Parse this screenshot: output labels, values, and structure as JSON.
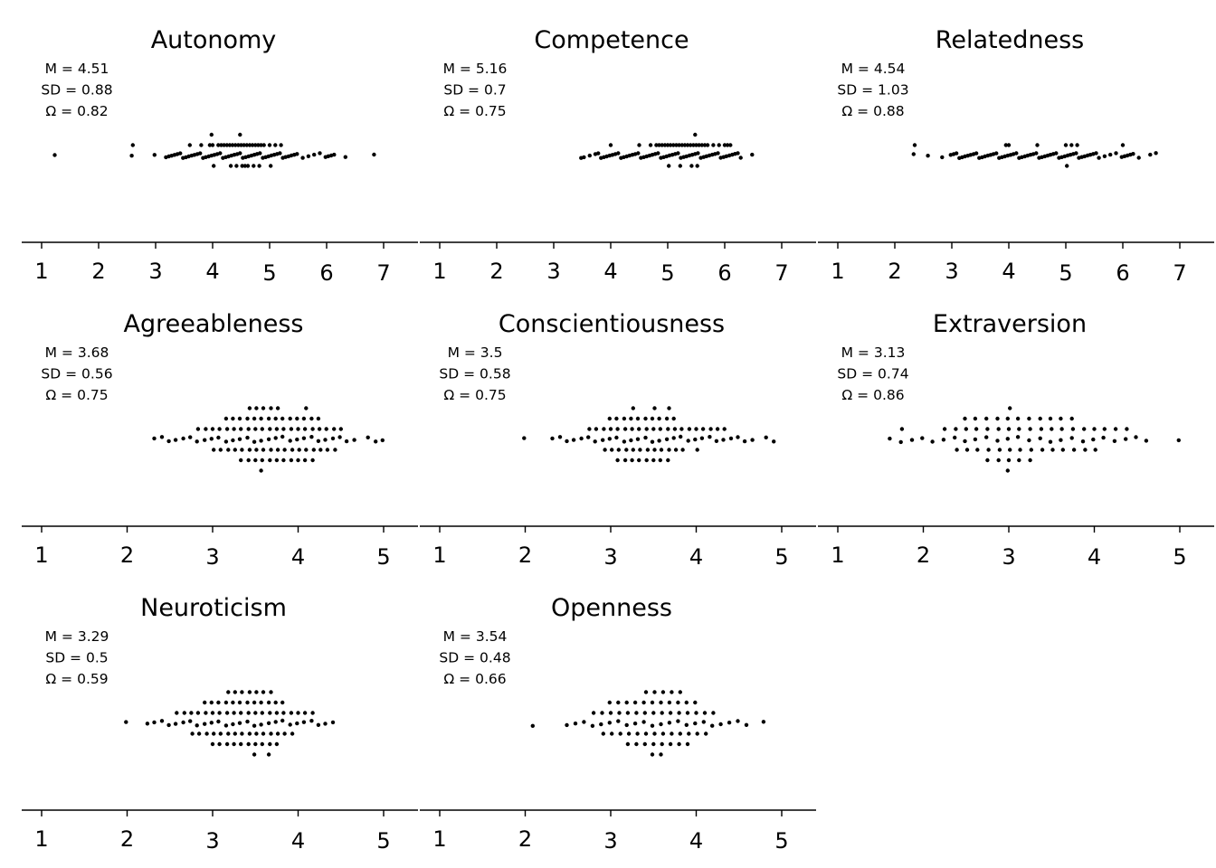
{
  "figure": {
    "background": "#ffffff",
    "dot_color": "#000000"
  },
  "chart_data": [
    {
      "type": "scatter",
      "subtype": "beeswarm",
      "title": "Autonomy",
      "stats": {
        "mean": "M = 4.51",
        "sd": "SD = 0.88",
        "omega": "Ω = 0.82"
      },
      "xlim": [
        1,
        7
      ],
      "ticks": [
        "1",
        "2",
        "3",
        "4",
        "5",
        "6",
        "7"
      ],
      "points": [
        1.25,
        2.6,
        2.6,
        3.0,
        3.2,
        3.25,
        3.3,
        3.35,
        3.4,
        3.45,
        3.5,
        3.55,
        3.6,
        3.6,
        3.65,
        3.7,
        3.75,
        3.8,
        3.8,
        3.85,
        3.9,
        3.95,
        3.95,
        4.0,
        4.0,
        4.0,
        4.0,
        4.05,
        4.1,
        4.1,
        4.15,
        4.15,
        4.2,
        4.2,
        4.25,
        4.25,
        4.3,
        4.3,
        4.3,
        4.35,
        4.35,
        4.4,
        4.4,
        4.4,
        4.45,
        4.45,
        4.5,
        4.5,
        4.5,
        4.5,
        4.55,
        4.55,
        4.55,
        4.6,
        4.6,
        4.6,
        4.65,
        4.65,
        4.7,
        4.7,
        4.7,
        4.75,
        4.75,
        4.8,
        4.8,
        4.8,
        4.85,
        4.85,
        4.9,
        4.9,
        4.95,
        5.0,
        5.0,
        5.0,
        5.05,
        5.1,
        5.1,
        5.15,
        5.2,
        5.2,
        5.25,
        5.3,
        5.35,
        5.4,
        5.45,
        5.5,
        5.6,
        5.7,
        5.8,
        5.9,
        6.0,
        6.05,
        6.1,
        6.15,
        6.35,
        6.85
      ]
    },
    {
      "type": "scatter",
      "subtype": "beeswarm",
      "title": "Competence",
      "stats": {
        "mean": "M = 5.16",
        "sd": "SD = 0.7",
        "omega": "Ω = 0.75"
      },
      "xlim": [
        1,
        7
      ],
      "ticks": [
        "1",
        "2",
        "3",
        "4",
        "5",
        "6",
        "7"
      ],
      "points": [
        3.5,
        3.55,
        3.65,
        3.75,
        3.8,
        3.85,
        3.9,
        3.95,
        4.0,
        4.0,
        4.05,
        4.1,
        4.15,
        4.2,
        4.25,
        4.3,
        4.35,
        4.4,
        4.45,
        4.5,
        4.5,
        4.55,
        4.6,
        4.65,
        4.7,
        4.7,
        4.75,
        4.8,
        4.8,
        4.85,
        4.85,
        4.9,
        4.9,
        4.95,
        4.95,
        5.0,
        5.0,
        5.0,
        5.05,
        5.05,
        5.1,
        5.1,
        5.15,
        5.15,
        5.2,
        5.2,
        5.2,
        5.25,
        5.25,
        5.3,
        5.3,
        5.35,
        5.35,
        5.4,
        5.4,
        5.4,
        5.45,
        5.45,
        5.5,
        5.5,
        5.5,
        5.5,
        5.55,
        5.55,
        5.6,
        5.6,
        5.65,
        5.65,
        5.7,
        5.7,
        5.75,
        5.8,
        5.8,
        5.85,
        5.9,
        5.9,
        5.95,
        6.0,
        6.0,
        6.05,
        6.05,
        6.1,
        6.1,
        6.15,
        6.2,
        6.25,
        6.3,
        6.5
      ]
    },
    {
      "type": "scatter",
      "subtype": "beeswarm",
      "title": "Relatedness",
      "stats": {
        "mean": "M = 4.54",
        "sd": "SD = 1.03",
        "omega": "Ω = 0.88"
      },
      "xlim": [
        1,
        7
      ],
      "ticks": [
        "1",
        "2",
        "3",
        "4",
        "5",
        "6",
        "7"
      ],
      "points": [
        2.35,
        2.35,
        2.6,
        2.85,
        3.0,
        3.05,
        3.1,
        3.15,
        3.2,
        3.25,
        3.3,
        3.35,
        3.4,
        3.45,
        3.5,
        3.55,
        3.6,
        3.65,
        3.7,
        3.75,
        3.8,
        3.85,
        3.9,
        3.95,
        3.95,
        4.0,
        4.0,
        4.05,
        4.1,
        4.15,
        4.2,
        4.25,
        4.3,
        4.35,
        4.4,
        4.45,
        4.5,
        4.5,
        4.55,
        4.6,
        4.65,
        4.7,
        4.75,
        4.8,
        4.85,
        4.9,
        4.95,
        5.0,
        5.0,
        5.0,
        5.05,
        5.1,
        5.1,
        5.15,
        5.2,
        5.2,
        5.25,
        5.3,
        5.35,
        5.4,
        5.45,
        5.5,
        5.55,
        5.6,
        5.7,
        5.8,
        5.9,
        6.0,
        6.0,
        6.05,
        6.1,
        6.15,
        6.2,
        6.3,
        6.5,
        6.6
      ]
    },
    {
      "type": "scatter",
      "subtype": "beeswarm",
      "title": "Agreeableness",
      "stats": {
        "mean": "M = 3.68",
        "sd": "SD = 0.56",
        "omega": "Ω = 0.75"
      },
      "xlim": [
        1,
        5
      ],
      "ticks": [
        "1",
        "2",
        "3",
        "4",
        "5"
      ],
      "points": [
        2.33,
        2.42,
        2.5,
        2.58,
        2.67,
        2.75,
        2.83,
        2.83,
        2.92,
        2.92,
        3.0,
        3.0,
        3.0,
        3.08,
        3.08,
        3.08,
        3.17,
        3.17,
        3.17,
        3.17,
        3.25,
        3.25,
        3.25,
        3.25,
        3.33,
        3.33,
        3.33,
        3.33,
        3.33,
        3.42,
        3.42,
        3.42,
        3.42,
        3.42,
        3.42,
        3.5,
        3.5,
        3.5,
        3.5,
        3.5,
        3.5,
        3.58,
        3.58,
        3.58,
        3.58,
        3.58,
        3.58,
        3.58,
        3.67,
        3.67,
        3.67,
        3.67,
        3.67,
        3.67,
        3.75,
        3.75,
        3.75,
        3.75,
        3.75,
        3.75,
        3.83,
        3.83,
        3.83,
        3.83,
        3.83,
        3.92,
        3.92,
        3.92,
        3.92,
        3.92,
        4.0,
        4.0,
        4.0,
        4.0,
        4.0,
        4.08,
        4.08,
        4.08,
        4.08,
        4.08,
        4.08,
        4.17,
        4.17,
        4.17,
        4.17,
        4.17,
        4.25,
        4.25,
        4.25,
        4.25,
        4.33,
        4.33,
        4.33,
        4.42,
        4.42,
        4.42,
        4.5,
        4.5,
        4.58,
        4.67,
        4.83,
        4.92,
        5.0
      ]
    },
    {
      "type": "scatter",
      "subtype": "beeswarm",
      "title": "Conscientiousness",
      "stats": {
        "mean": "M = 3.5",
        "sd": "SD = 0.58",
        "omega": "Ω = 0.75"
      },
      "xlim": [
        1,
        5
      ],
      "ticks": [
        "1",
        "2",
        "3",
        "4",
        "5"
      ],
      "points": [
        2.0,
        2.33,
        2.42,
        2.5,
        2.58,
        2.67,
        2.75,
        2.75,
        2.83,
        2.83,
        2.92,
        2.92,
        2.92,
        3.0,
        3.0,
        3.0,
        3.0,
        3.08,
        3.08,
        3.08,
        3.08,
        3.08,
        3.17,
        3.17,
        3.17,
        3.17,
        3.17,
        3.25,
        3.25,
        3.25,
        3.25,
        3.25,
        3.25,
        3.33,
        3.33,
        3.33,
        3.33,
        3.33,
        3.42,
        3.42,
        3.42,
        3.42,
        3.42,
        3.5,
        3.5,
        3.5,
        3.5,
        3.5,
        3.5,
        3.58,
        3.58,
        3.58,
        3.58,
        3.58,
        3.67,
        3.67,
        3.67,
        3.67,
        3.67,
        3.67,
        3.75,
        3.75,
        3.75,
        3.75,
        3.83,
        3.83,
        3.83,
        3.92,
        3.92,
        4.0,
        4.0,
        4.0,
        4.08,
        4.08,
        4.17,
        4.17,
        4.25,
        4.25,
        4.33,
        4.33,
        4.42,
        4.5,
        4.58,
        4.67,
        4.83,
        4.92
      ]
    },
    {
      "type": "scatter",
      "subtype": "beeswarm",
      "title": "Extraversion",
      "stats": {
        "mean": "M = 3.13",
        "sd": "SD = 0.74",
        "omega": "Ω = 0.86"
      },
      "xlim": [
        1,
        5
      ],
      "ticks": [
        "1",
        "2",
        "3",
        "4",
        "5"
      ],
      "points": [
        1.62,
        1.75,
        1.75,
        1.88,
        2.0,
        2.12,
        2.25,
        2.25,
        2.38,
        2.38,
        2.38,
        2.5,
        2.5,
        2.5,
        2.5,
        2.62,
        2.62,
        2.62,
        2.62,
        2.75,
        2.75,
        2.75,
        2.75,
        2.75,
        2.88,
        2.88,
        2.88,
        2.88,
        2.88,
        3.0,
        3.0,
        3.0,
        3.0,
        3.0,
        3.0,
        3.0,
        3.12,
        3.12,
        3.12,
        3.12,
        3.12,
        3.25,
        3.25,
        3.25,
        3.25,
        3.25,
        3.38,
        3.38,
        3.38,
        3.38,
        3.5,
        3.5,
        3.5,
        3.5,
        3.62,
        3.62,
        3.62,
        3.62,
        3.75,
        3.75,
        3.75,
        3.75,
        3.88,
        3.88,
        3.88,
        4.0,
        4.0,
        4.0,
        4.12,
        4.12,
        4.25,
        4.25,
        4.38,
        4.38,
        4.5,
        4.62,
        5.0
      ]
    },
    {
      "type": "scatter",
      "subtype": "beeswarm",
      "title": "Neuroticism",
      "stats": {
        "mean": "M = 3.29",
        "sd": "SD = 0.5",
        "omega": "Ω = 0.59"
      },
      "xlim": [
        1,
        5
      ],
      "ticks": [
        "1",
        "2",
        "3",
        "4",
        "5"
      ],
      "points": [
        2.0,
        2.25,
        2.33,
        2.42,
        2.5,
        2.58,
        2.58,
        2.67,
        2.67,
        2.75,
        2.75,
        2.75,
        2.83,
        2.83,
        2.83,
        2.92,
        2.92,
        2.92,
        2.92,
        3.0,
        3.0,
        3.0,
        3.0,
        3.0,
        3.08,
        3.08,
        3.08,
        3.08,
        3.08,
        3.17,
        3.17,
        3.17,
        3.17,
        3.17,
        3.17,
        3.25,
        3.25,
        3.25,
        3.25,
        3.25,
        3.25,
        3.33,
        3.33,
        3.33,
        3.33,
        3.33,
        3.33,
        3.42,
        3.42,
        3.42,
        3.42,
        3.42,
        3.42,
        3.5,
        3.5,
        3.5,
        3.5,
        3.5,
        3.5,
        3.5,
        3.58,
        3.58,
        3.58,
        3.58,
        3.58,
        3.58,
        3.67,
        3.67,
        3.67,
        3.67,
        3.67,
        3.67,
        3.67,
        3.75,
        3.75,
        3.75,
        3.75,
        3.75,
        3.83,
        3.83,
        3.83,
        3.83,
        3.92,
        3.92,
        3.92,
        4.0,
        4.0,
        4.08,
        4.08,
        4.17,
        4.17,
        4.25,
        4.33,
        4.42
      ]
    },
    {
      "type": "scatter",
      "subtype": "beeswarm",
      "title": "Openness",
      "stats": {
        "mean": "M = 3.54",
        "sd": "SD = 0.48",
        "omega": "Ω = 0.66"
      },
      "xlim": [
        1,
        5
      ],
      "ticks": [
        "1",
        "2",
        "3",
        "4",
        "5"
      ],
      "points": [
        2.1,
        2.5,
        2.6,
        2.7,
        2.8,
        2.8,
        2.9,
        2.9,
        2.9,
        3.0,
        3.0,
        3.0,
        3.0,
        3.1,
        3.1,
        3.1,
        3.1,
        3.2,
        3.2,
        3.2,
        3.2,
        3.2,
        3.3,
        3.3,
        3.3,
        3.3,
        3.3,
        3.4,
        3.4,
        3.4,
        3.4,
        3.4,
        3.4,
        3.5,
        3.5,
        3.5,
        3.5,
        3.5,
        3.5,
        3.5,
        3.6,
        3.6,
        3.6,
        3.6,
        3.6,
        3.6,
        3.6,
        3.7,
        3.7,
        3.7,
        3.7,
        3.7,
        3.7,
        3.8,
        3.8,
        3.8,
        3.8,
        3.8,
        3.8,
        3.9,
        3.9,
        3.9,
        3.9,
        3.9,
        4.0,
        4.0,
        4.0,
        4.0,
        4.1,
        4.1,
        4.1,
        4.2,
        4.2,
        4.3,
        4.4,
        4.5,
        4.6,
        4.8
      ]
    }
  ]
}
